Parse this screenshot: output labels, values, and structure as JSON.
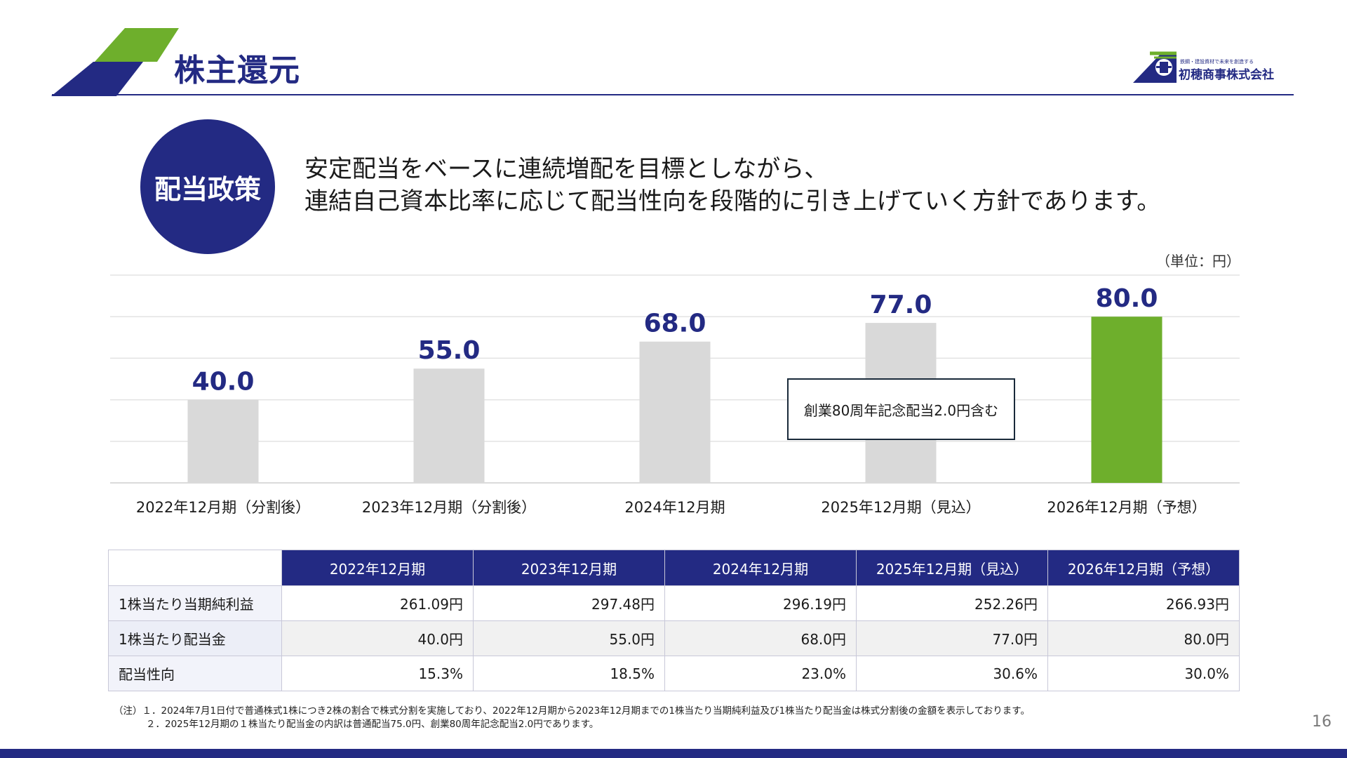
{
  "header": {
    "title": "株主還元",
    "logo_tagline": "鉄鋼・建設資材で未来を創造する",
    "company": "初穂商事株式会社",
    "colors": {
      "navy": "#232a83",
      "green": "#6eaf2c"
    }
  },
  "policy": {
    "badge": "配当政策",
    "line1": "安定配当をベースに連続増配を目標としながら、",
    "line2": "連結自己資本比率に応じて配当性向を段階的に引き上げていく方針であります。"
  },
  "chart_unit": "（単位：円）",
  "annotation": "創業80周年記念配当2.0円含む",
  "chart_data": {
    "type": "bar",
    "categories": [
      "2022年12月期（分割後）",
      "2023年12月期（分割後）",
      "2024年12月期",
      "2025年12月期（見込）",
      "2026年12月期（予想）"
    ],
    "values": [
      40.0,
      55.0,
      68.0,
      77.0,
      80.0
    ],
    "value_labels": [
      "40.0",
      "55.0",
      "68.0",
      "77.0",
      "80.0"
    ],
    "bar_colors": [
      "#d9d9d9",
      "#d9d9d9",
      "#d9d9d9",
      "#d9d9d9",
      "#6eaf2c"
    ],
    "ylim": [
      0,
      100
    ],
    "grid": true
  },
  "table": {
    "headers": [
      "2022年12月期",
      "2023年12月期",
      "2024年12月期",
      "2025年12月期（見込）",
      "2026年12月期（予想）"
    ],
    "rows": [
      {
        "label": "1株当たり当期純利益",
        "values": [
          "261.09円",
          "297.48円",
          "296.19円",
          "252.26円",
          "266.93円"
        ]
      },
      {
        "label": "1株当たり配当金",
        "values": [
          "40.0円",
          "55.0円",
          "68.0円",
          "77.0円",
          "80.0円"
        ]
      },
      {
        "label": "配当性向",
        "values": [
          "15.3%",
          "18.5%",
          "23.0%",
          "30.6%",
          "30.0%"
        ]
      }
    ]
  },
  "notes": {
    "line1": "（注）１．2024年7月1日付で普通株式1株につき2株の割合で株式分割を実施しており、2022年12月期から2023年12月期までの1株当たり当期純利益及び1株当たり配当金は株式分割後の金額を表示しております。",
    "line2": "２．2025年12月期の１株当たり配当金の内訳は普通配当75.0円、創業80周年記念配当2.0円であります。"
  },
  "page_number": "16"
}
